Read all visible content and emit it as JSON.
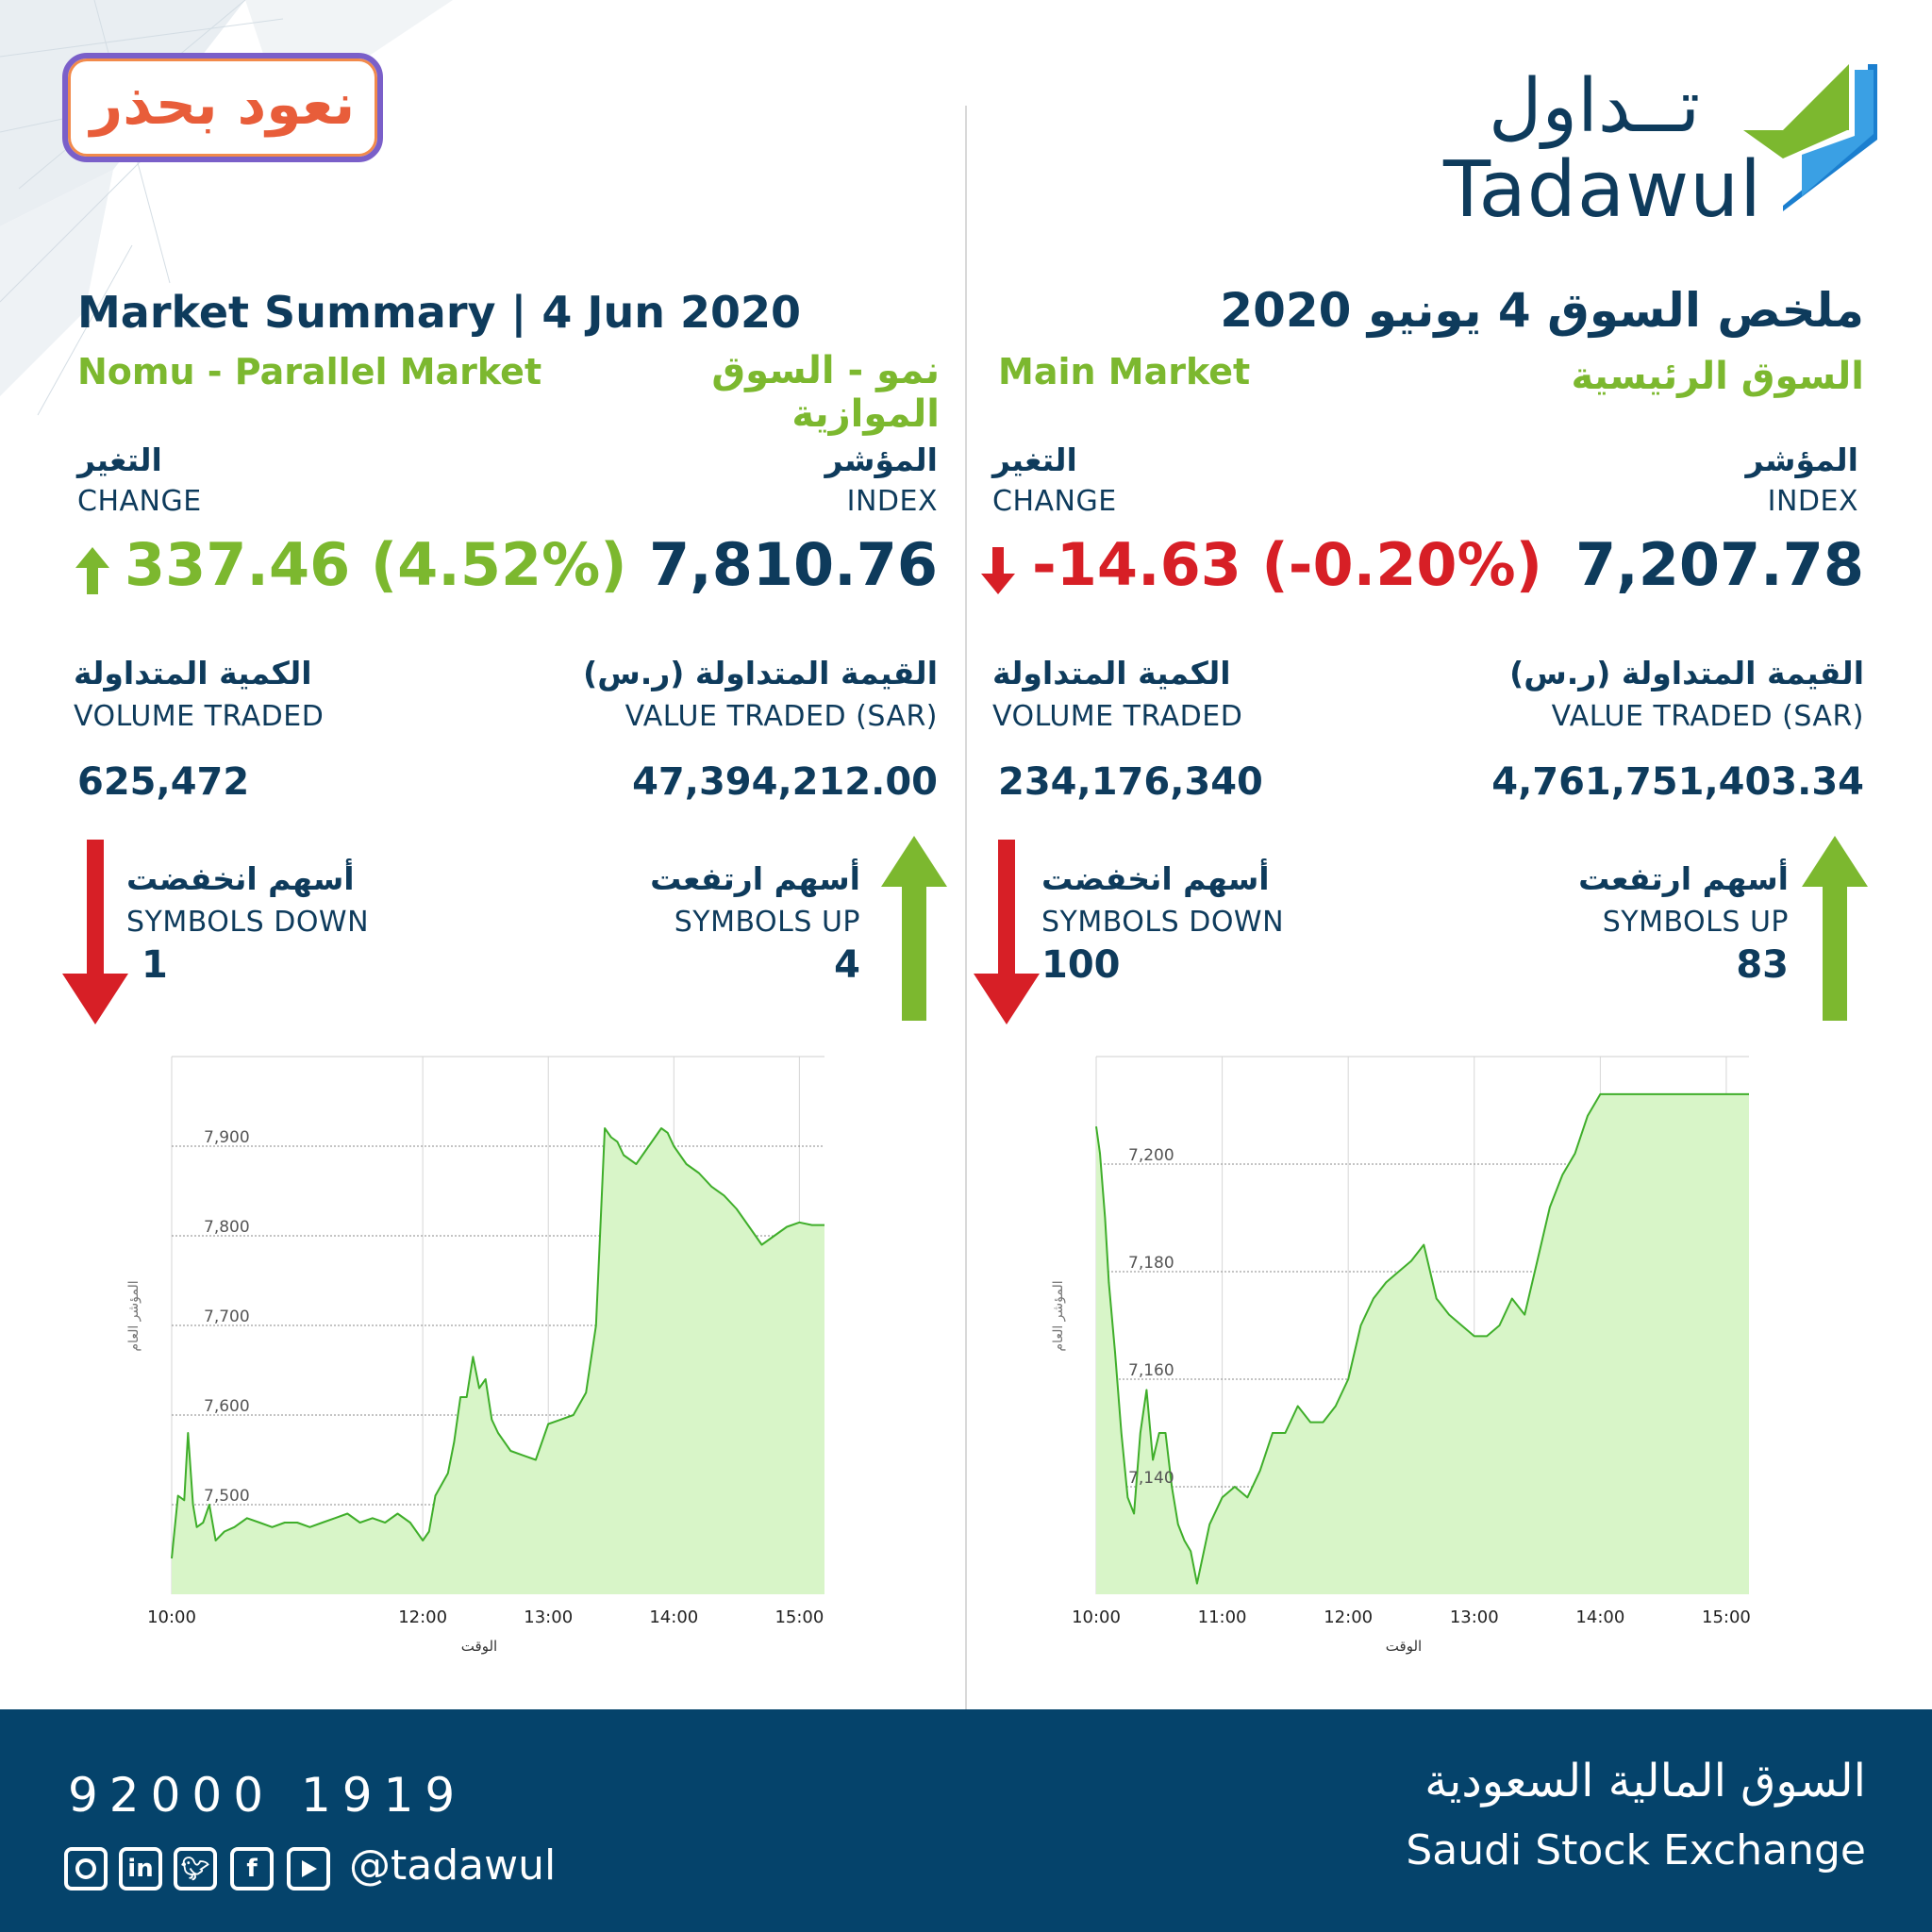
{
  "header": {
    "badge_text": "نعود بحذر",
    "logo_ar": "تــداول",
    "logo_en": "Tadawul",
    "title_en": "Market Summary | 4 Jun 2020",
    "title_ar": "ملخص السوق 4 يونيو 2020"
  },
  "nomu": {
    "market_en": "Nomu - Parallel Market",
    "market_ar": "نمو - السوق الموازية",
    "index_ar": "المؤشر",
    "index_en": "INDEX",
    "index_value": "7,810.76",
    "change_ar": "التغير",
    "change_en": "CHANGE",
    "change_value": "337.46 (4.52%)",
    "value_ar": "القيمة المتداولة (ر.س)",
    "value_en": "VALUE TRADED (SAR)",
    "value_traded": "47,394,212.00",
    "volume_ar": "الكمية المتداولة",
    "volume_en": "VOLUME TRADED",
    "volume_traded": "625,472",
    "up_ar": "أسهم ارتفعت",
    "up_en": "SYMBOLS UP",
    "up_count": "4",
    "down_ar": "أسهم انخفضت",
    "down_en": "SYMBOLS DOWN",
    "down_count": "1"
  },
  "main": {
    "market_en": "Main Market",
    "market_ar": "السوق الرئيسية",
    "index_ar": "المؤشر",
    "index_en": "INDEX",
    "index_value": "7,207.78",
    "change_ar": "التغير",
    "change_en": "CHANGE",
    "change_value": "-14.63 (-0.20%)",
    "value_ar": "القيمة المتداولة (ر.س)",
    "value_en": "VALUE TRADED (SAR)",
    "value_traded": "4,761,751,403.34",
    "volume_ar": "الكمية المتداولة",
    "volume_en": "VOLUME TRADED",
    "volume_traded": "234,176,340",
    "up_ar": "أسهم ارتفعت",
    "up_en": "SYMBOLS UP",
    "up_count": "83",
    "down_ar": "أسهم انخفضت",
    "down_en": "SYMBOLS DOWN",
    "down_count": "100"
  },
  "footer": {
    "phone": "92000 1919",
    "handle": "@tadawul",
    "org_ar": "السوق المالية السعودية",
    "org_en": "Saudi Stock Exchange"
  },
  "colors": {
    "navy": "#0e3b5c",
    "green": "#7cb82f",
    "red": "#d71f26",
    "footer": "#05436b",
    "chart_line": "#3fae2a",
    "chart_fill": "#d8f5c8"
  },
  "chart_data": [
    {
      "type": "area",
      "xlabel": "الوقت",
      "ylabel": "المؤشر العام",
      "x_ticks": [
        "10:00",
        "12:00",
        "13:00",
        "14:00",
        "15:00"
      ],
      "x_tick_hours": [
        10.0,
        12.0,
        13.0,
        14.0,
        15.0
      ],
      "y_ticks": [
        7500,
        7600,
        7700,
        7800,
        7900
      ],
      "y_tick_labels": [
        "7,500",
        "7,600",
        "7,700",
        "7,800",
        "7,900"
      ],
      "xlim": [
        10.0,
        15.2
      ],
      "ylim": [
        7400,
        8000
      ],
      "grid": true,
      "x": [
        10.0,
        10.05,
        10.1,
        10.13,
        10.17,
        10.2,
        10.25,
        10.3,
        10.35,
        10.42,
        10.5,
        10.6,
        10.7,
        10.8,
        10.9,
        11.0,
        11.1,
        11.2,
        11.3,
        11.4,
        11.5,
        11.6,
        11.7,
        11.8,
        11.9,
        12.0,
        12.05,
        12.1,
        12.2,
        12.25,
        12.3,
        12.35,
        12.4,
        12.45,
        12.5,
        12.55,
        12.6,
        12.7,
        12.8,
        12.9,
        13.0,
        13.1,
        13.2,
        13.3,
        13.38,
        13.45,
        13.5,
        13.55,
        13.6,
        13.7,
        13.8,
        13.9,
        13.95,
        14.0,
        14.1,
        14.2,
        14.3,
        14.4,
        14.5,
        14.6,
        14.7,
        14.8,
        14.9,
        15.0,
        15.1,
        15.2
      ],
      "y": [
        7440,
        7510,
        7505,
        7580,
        7500,
        7475,
        7480,
        7500,
        7460,
        7470,
        7475,
        7485,
        7480,
        7475,
        7480,
        7480,
        7475,
        7480,
        7485,
        7490,
        7480,
        7485,
        7480,
        7490,
        7480,
        7460,
        7470,
        7510,
        7535,
        7570,
        7620,
        7620,
        7665,
        7630,
        7640,
        7595,
        7580,
        7560,
        7555,
        7550,
        7590,
        7595,
        7600,
        7625,
        7700,
        7920,
        7910,
        7905,
        7890,
        7880,
        7900,
        7920,
        7915,
        7900,
        7880,
        7870,
        7855,
        7845,
        7830,
        7810,
        7790,
        7800,
        7810,
        7815,
        7812,
        7812
      ]
    },
    {
      "type": "area",
      "xlabel": "الوقت",
      "ylabel": "المؤشر العام",
      "x_ticks": [
        "10:00",
        "11:00",
        "12:00",
        "13:00",
        "14:00",
        "15:00"
      ],
      "x_tick_hours": [
        10.0,
        11.0,
        12.0,
        13.0,
        14.0,
        15.0
      ],
      "y_ticks": [
        7140,
        7160,
        7180,
        7200
      ],
      "y_tick_labels": [
        "7,140",
        "7,160",
        "7,180",
        "7,200"
      ],
      "xlim": [
        10.0,
        15.18
      ],
      "ylim": [
        7120,
        7220
      ],
      "grid": true,
      "x": [
        10.0,
        10.03,
        10.07,
        10.1,
        10.15,
        10.2,
        10.25,
        10.3,
        10.35,
        10.4,
        10.45,
        10.5,
        10.55,
        10.6,
        10.65,
        10.7,
        10.75,
        10.8,
        10.9,
        11.0,
        11.1,
        11.2,
        11.3,
        11.4,
        11.5,
        11.6,
        11.7,
        11.8,
        11.9,
        12.0,
        12.1,
        12.2,
        12.3,
        12.4,
        12.5,
        12.6,
        12.7,
        12.8,
        12.9,
        13.0,
        13.1,
        13.2,
        13.3,
        13.4,
        13.5,
        13.6,
        13.7,
        13.8,
        13.9,
        14.0,
        14.1,
        14.2,
        14.3,
        14.4,
        14.5,
        14.6,
        14.7,
        14.8,
        14.9,
        15.0,
        15.02,
        15.05,
        15.1,
        15.18
      ],
      "y": [
        7207,
        7202,
        7190,
        7178,
        7165,
        7150,
        7138,
        7135,
        7150,
        7158,
        7145,
        7150,
        7150,
        7140,
        7133,
        7130,
        7128,
        7122,
        7133,
        7138,
        7140,
        7138,
        7143,
        7150,
        7150,
        7155,
        7152,
        7152,
        7155,
        7160,
        7170,
        7175,
        7178,
        7180,
        7182,
        7185,
        7175,
        7172,
        7170,
        7168,
        7168,
        7170,
        7175,
        7172,
        7182,
        7192,
        7198,
        7202,
        7209,
        7213,
        7213,
        7213,
        7213,
        7213,
        7213,
        7213,
        7213,
        7213,
        7213,
        7213,
        7213,
        7213,
        7213,
        7213
      ]
    }
  ]
}
